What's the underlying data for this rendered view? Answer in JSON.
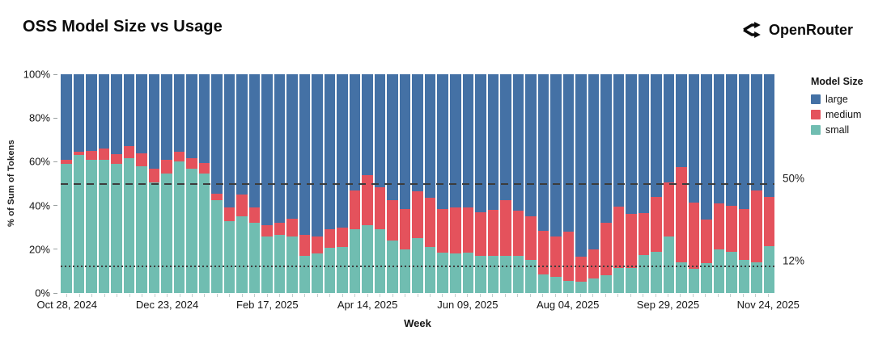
{
  "title": "OSS Model Size vs Usage",
  "brand": {
    "name": "OpenRouter"
  },
  "chart_data": {
    "type": "bar",
    "stacked": true,
    "normalized_percent": true,
    "title": "OSS Model Size vs Usage",
    "xlabel": "Week",
    "ylabel": "% of Sum of Tokens",
    "ylim": [
      0,
      100
    ],
    "grid": false,
    "num_weeks": 57,
    "y_ticks": [
      {
        "label": "0%",
        "value": 0
      },
      {
        "label": "20%",
        "value": 20
      },
      {
        "label": "40%",
        "value": 40
      },
      {
        "label": "60%",
        "value": 60
      },
      {
        "label": "80%",
        "value": 80
      },
      {
        "label": "100%",
        "value": 100
      }
    ],
    "x_ticks": [
      {
        "label": "Oct 28, 2024",
        "bar": 1
      },
      {
        "label": "Dec 23, 2024",
        "bar": 9
      },
      {
        "label": "Feb 17, 2025",
        "bar": 17
      },
      {
        "label": "Apr 14, 2025",
        "bar": 25
      },
      {
        "label": "Jun 09, 2025",
        "bar": 33
      },
      {
        "label": "Aug 04, 2025",
        "bar": 41
      },
      {
        "label": "Sep 29, 2025",
        "bar": 49
      },
      {
        "label": "Nov 24, 2025",
        "bar": 57
      }
    ],
    "legend": {
      "title": "Model Size",
      "position": "right",
      "entries": [
        {
          "label": "large",
          "color": "#4471a5"
        },
        {
          "label": "medium",
          "color": "#e4525c"
        },
        {
          "label": "small",
          "color": "#70bdb1"
        }
      ]
    },
    "reference_lines": [
      {
        "value": 50,
        "label": "50%",
        "style": "dashed",
        "color": "#3c3c3c"
      },
      {
        "value": 12,
        "label": "12%",
        "style": "dotted",
        "color": "#3c3c3c"
      }
    ],
    "series": [
      {
        "name": "small",
        "color": "#70bdb1",
        "values": [
          59,
          63,
          61,
          61,
          59,
          61.5,
          58,
          50.5,
          54.5,
          60,
          57,
          54.5,
          42.5,
          33,
          35,
          32,
          26,
          26.5,
          26,
          17,
          18,
          20.5,
          21,
          29,
          31,
          29,
          24,
          20,
          25,
          21,
          18.5,
          18,
          18.5,
          17,
          17,
          17,
          17,
          15,
          8.5,
          7.5,
          5.5,
          5,
          6.5,
          8,
          11.5,
          11.5,
          17.5,
          19,
          26,
          14,
          11,
          13.5,
          20,
          19,
          15,
          14,
          21.5
        ]
      },
      {
        "name": "medium",
        "color": "#e4525c",
        "values": [
          2,
          1.5,
          4,
          5,
          4.5,
          5.5,
          6,
          6.5,
          6.5,
          4.5,
          4.5,
          5,
          3,
          6,
          10,
          7,
          5,
          5.5,
          8,
          9.5,
          8,
          8.5,
          9,
          18,
          23,
          19.5,
          18.5,
          18.5,
          21.5,
          22.5,
          20,
          21,
          20.5,
          20,
          21,
          25.5,
          20.5,
          20,
          20,
          18.5,
          22.5,
          11.5,
          13.5,
          24,
          28,
          24.5,
          19,
          25,
          24.5,
          43.5,
          30.5,
          20,
          21,
          21,
          23.5,
          33,
          22.5
        ]
      },
      {
        "name": "large",
        "color": "#4471a5",
        "values": [
          39,
          35.5,
          35,
          34,
          36.5,
          33,
          36,
          43,
          39,
          35.5,
          38.5,
          40.5,
          54.5,
          61,
          55,
          61,
          69,
          68,
          66,
          73.5,
          74,
          71,
          70,
          53,
          46,
          51.5,
          57.5,
          61.5,
          53.5,
          56.5,
          61.5,
          61,
          61,
          63,
          62,
          57.5,
          62.5,
          65,
          71.5,
          74,
          72,
          83.5,
          80,
          68,
          60.5,
          64,
          63.5,
          56,
          49.5,
          42.5,
          58.5,
          66.5,
          59,
          60,
          61.5,
          53,
          56
        ]
      }
    ]
  }
}
